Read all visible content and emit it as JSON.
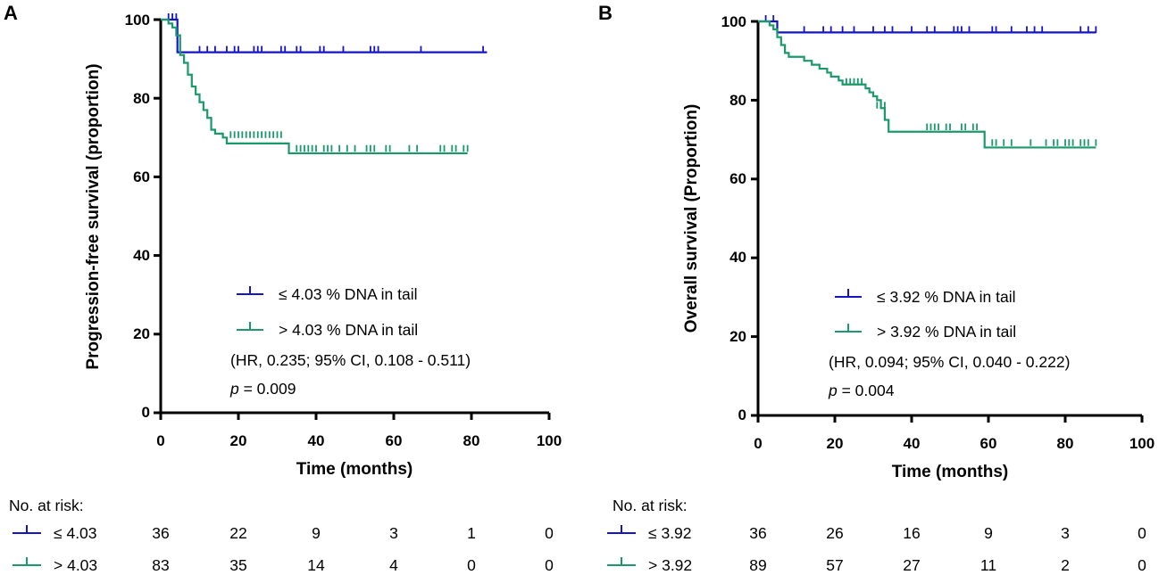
{
  "chart_data": [
    {
      "type": "line",
      "subtype": "kaplan-meier",
      "panel_label": "A",
      "xlabel": "Time (months)",
      "ylabel": "Progression-free survival (proportion)",
      "xlim": [
        0,
        100
      ],
      "ylim": [
        0,
        100
      ],
      "xticks": [
        "0",
        "20",
        "40",
        "60",
        "80",
        "100"
      ],
      "yticks": [
        "0",
        "20",
        "40",
        "60",
        "80",
        "100"
      ],
      "grid": false,
      "colors": {
        "low": "#1515c8",
        "high": "#1a9a6a"
      },
      "series": [
        {
          "name": "≤ 4.03 % DNA in tail",
          "key": "low",
          "steps": [
            [
              0,
              100
            ],
            [
              4.3,
              100
            ],
            [
              4.3,
              91.7
            ],
            [
              84,
              91.7
            ]
          ],
          "censors": [
            [
              2,
              100
            ],
            [
              3,
              100
            ],
            [
              4,
              100
            ],
            [
              10,
              91.7
            ],
            [
              12,
              91.7
            ],
            [
              14,
              91.7
            ],
            [
              17,
              91.7
            ],
            [
              19,
              91.7
            ],
            [
              20,
              91.7
            ],
            [
              24,
              91.7
            ],
            [
              25,
              91.7
            ],
            [
              26,
              91.7
            ],
            [
              31,
              91.7
            ],
            [
              32,
              91.7
            ],
            [
              35,
              91.7
            ],
            [
              36,
              91.7
            ],
            [
              41,
              91.7
            ],
            [
              42,
              91.7
            ],
            [
              47,
              91.7
            ],
            [
              54,
              91.7
            ],
            [
              55,
              91.7
            ],
            [
              56,
              91.7
            ],
            [
              67,
              91.7
            ],
            [
              83,
              91.7
            ]
          ]
        },
        {
          "name": "> 4.03 % DNA in tail",
          "key": "high",
          "steps": [
            [
              0,
              100
            ],
            [
              2,
              100
            ],
            [
              2,
              99
            ],
            [
              3,
              99
            ],
            [
              3,
              98
            ],
            [
              4,
              98
            ],
            [
              4,
              96
            ],
            [
              5,
              96
            ],
            [
              5,
              91
            ],
            [
              6,
              91
            ],
            [
              6,
              89
            ],
            [
              7,
              89
            ],
            [
              7,
              86
            ],
            [
              8,
              86
            ],
            [
              8,
              83
            ],
            [
              9,
              83
            ],
            [
              9,
              81
            ],
            [
              10,
              81
            ],
            [
              10,
              79
            ],
            [
              11,
              79
            ],
            [
              11,
              77
            ],
            [
              12,
              77
            ],
            [
              12,
              75
            ],
            [
              13,
              75
            ],
            [
              13,
              72
            ],
            [
              14,
              72
            ],
            [
              14,
              71
            ],
            [
              16,
              71
            ],
            [
              16,
              70
            ],
            [
              17,
              70
            ],
            [
              17,
              68.5
            ],
            [
              33,
              68.5
            ],
            [
              33,
              66
            ],
            [
              79,
              66
            ]
          ],
          "censors": [
            [
              18,
              70
            ],
            [
              19,
              70
            ],
            [
              20,
              70
            ],
            [
              21,
              70
            ],
            [
              22,
              70
            ],
            [
              23,
              70
            ],
            [
              24,
              70
            ],
            [
              25,
              70
            ],
            [
              26,
              70
            ],
            [
              27,
              70
            ],
            [
              28,
              70
            ],
            [
              29,
              70
            ],
            [
              30,
              70
            ],
            [
              31,
              70
            ],
            [
              35,
              66.5
            ],
            [
              36,
              66.5
            ],
            [
              37,
              66.5
            ],
            [
              38,
              66.5
            ],
            [
              39,
              66.5
            ],
            [
              40,
              66.5
            ],
            [
              42,
              66.5
            ],
            [
              43,
              66.5
            ],
            [
              44,
              66.5
            ],
            [
              46,
              66.5
            ],
            [
              48,
              66.5
            ],
            [
              50,
              66.5
            ],
            [
              53,
              66.5
            ],
            [
              54,
              66.5
            ],
            [
              55,
              66.5
            ],
            [
              58,
              66.5
            ],
            [
              59,
              66.5
            ],
            [
              64,
              66.5
            ],
            [
              66,
              66.5
            ],
            [
              72,
              66.5
            ],
            [
              73,
              66.5
            ],
            [
              75,
              66.5
            ],
            [
              76,
              66.5
            ],
            [
              78,
              66.5
            ],
            [
              79,
              66.5
            ]
          ]
        }
      ],
      "annotations": {
        "legend_low": "≤ 4.03 % DNA in tail",
        "legend_high": "> 4.03 % DNA in tail",
        "hr": "(HR, 0.235; 95% CI, 0.108 - 0.511)",
        "p_italic": "p",
        "p_value": " = 0.009"
      },
      "risk_table": {
        "title": "No. at risk:",
        "rows": [
          {
            "label": "≤ 4.03",
            "key": "low",
            "values": [
              "36",
              "22",
              "9",
              "3",
              "1",
              "0"
            ]
          },
          {
            "label": "> 4.03",
            "key": "high",
            "values": [
              "83",
              "35",
              "14",
              "4",
              "0",
              "0"
            ]
          }
        ]
      }
    },
    {
      "type": "line",
      "subtype": "kaplan-meier",
      "panel_label": "B",
      "xlabel": "Time (months)",
      "ylabel": "Overall survival  (Proportion)",
      "xlim": [
        0,
        100
      ],
      "ylim": [
        0,
        100
      ],
      "xticks": [
        "0",
        "20",
        "40",
        "60",
        "80",
        "100"
      ],
      "yticks": [
        "0",
        "20",
        "40",
        "60",
        "80",
        "100"
      ],
      "grid": false,
      "colors": {
        "low": "#1515c8",
        "high": "#1a9a6a"
      },
      "series": [
        {
          "name": "≤ 3.92 % DNA in tail",
          "key": "low",
          "steps": [
            [
              0,
              100
            ],
            [
              5,
              100
            ],
            [
              5,
              97.2
            ],
            [
              88,
              97.2
            ]
          ],
          "censors": [
            [
              2,
              100
            ],
            [
              4,
              100
            ],
            [
              12,
              97.2
            ],
            [
              17,
              97.2
            ],
            [
              19,
              97.2
            ],
            [
              22,
              97.2
            ],
            [
              25,
              97.2
            ],
            [
              30,
              97.2
            ],
            [
              33,
              97.2
            ],
            [
              35,
              97.2
            ],
            [
              40,
              97.2
            ],
            [
              44,
              97.2
            ],
            [
              46,
              97.2
            ],
            [
              51,
              97.2
            ],
            [
              52,
              97.2
            ],
            [
              53,
              97.2
            ],
            [
              55,
              97.2
            ],
            [
              61,
              97.2
            ],
            [
              62,
              97.2
            ],
            [
              66,
              97.2
            ],
            [
              70,
              97.2
            ],
            [
              72,
              97.2
            ],
            [
              74,
              97.2
            ],
            [
              84,
              97.2
            ],
            [
              86,
              97.2
            ],
            [
              88,
              97.2
            ]
          ]
        },
        {
          "name": "> 3.92 % DNA in tail",
          "key": "high",
          "steps": [
            [
              0,
              100
            ],
            [
              3,
              100
            ],
            [
              3,
              99
            ],
            [
              4,
              99
            ],
            [
              4,
              98
            ],
            [
              5,
              98
            ],
            [
              5,
              96
            ],
            [
              6,
              96
            ],
            [
              6,
              94
            ],
            [
              7,
              94
            ],
            [
              7,
              92
            ],
            [
              8,
              92
            ],
            [
              8,
              91
            ],
            [
              12,
              91
            ],
            [
              12,
              90
            ],
            [
              14,
              90
            ],
            [
              14,
              89
            ],
            [
              16,
              89
            ],
            [
              16,
              88
            ],
            [
              18,
              88
            ],
            [
              18,
              87
            ],
            [
              19,
              87
            ],
            [
              19,
              86
            ],
            [
              21,
              86
            ],
            [
              21,
              85
            ],
            [
              22,
              85
            ],
            [
              22,
              84
            ],
            [
              28,
              84
            ],
            [
              28,
              83
            ],
            [
              29,
              83
            ],
            [
              29,
              82
            ],
            [
              30,
              82
            ],
            [
              30,
              81
            ],
            [
              31,
              81
            ],
            [
              31,
              80
            ],
            [
              32,
              80
            ],
            [
              32,
              78
            ],
            [
              33,
              78
            ],
            [
              33,
              75
            ],
            [
              34,
              75
            ],
            [
              34,
              72
            ],
            [
              59,
              72
            ],
            [
              59,
              68
            ],
            [
              88,
              68
            ]
          ],
          "censors": [
            [
              23,
              84
            ],
            [
              24,
              84
            ],
            [
              25,
              84
            ],
            [
              26,
              84
            ],
            [
              27,
              84
            ],
            [
              31,
              78
            ],
            [
              32,
              78
            ],
            [
              33,
              78
            ],
            [
              44,
              72.5
            ],
            [
              45,
              72.5
            ],
            [
              46,
              72.5
            ],
            [
              47,
              72.5
            ],
            [
              49,
              72.5
            ],
            [
              50,
              72.5
            ],
            [
              53,
              72.5
            ],
            [
              54,
              72.5
            ],
            [
              56,
              72.5
            ],
            [
              57,
              72.5
            ],
            [
              61,
              68.5
            ],
            [
              62,
              68.5
            ],
            [
              64,
              68.5
            ],
            [
              66,
              68.5
            ],
            [
              71,
              68.5
            ],
            [
              75,
              68.5
            ],
            [
              77,
              68.5
            ],
            [
              78,
              68.5
            ],
            [
              80,
              68.5
            ],
            [
              81,
              68.5
            ],
            [
              82,
              68.5
            ],
            [
              84,
              68.5
            ],
            [
              85,
              68.5
            ],
            [
              86,
              68.5
            ],
            [
              88,
              68.5
            ]
          ]
        }
      ],
      "annotations": {
        "legend_low": "≤ 3.92 % DNA in tail",
        "legend_high": "> 3.92 % DNA in tail",
        "hr": "(HR, 0.094; 95% CI, 0.040 - 0.222)",
        "p_italic": "p",
        "p_value": " = 0.004"
      },
      "risk_table": {
        "title": "No. at risk:",
        "rows": [
          {
            "label": "≤ 3.92",
            "key": "low",
            "values": [
              "36",
              "26",
              "16",
              "9",
              "3",
              "0"
            ]
          },
          {
            "label": "> 3.92",
            "key": "high",
            "values": [
              "89",
              "57",
              "27",
              "11",
              "2",
              "0"
            ]
          }
        ]
      }
    }
  ]
}
